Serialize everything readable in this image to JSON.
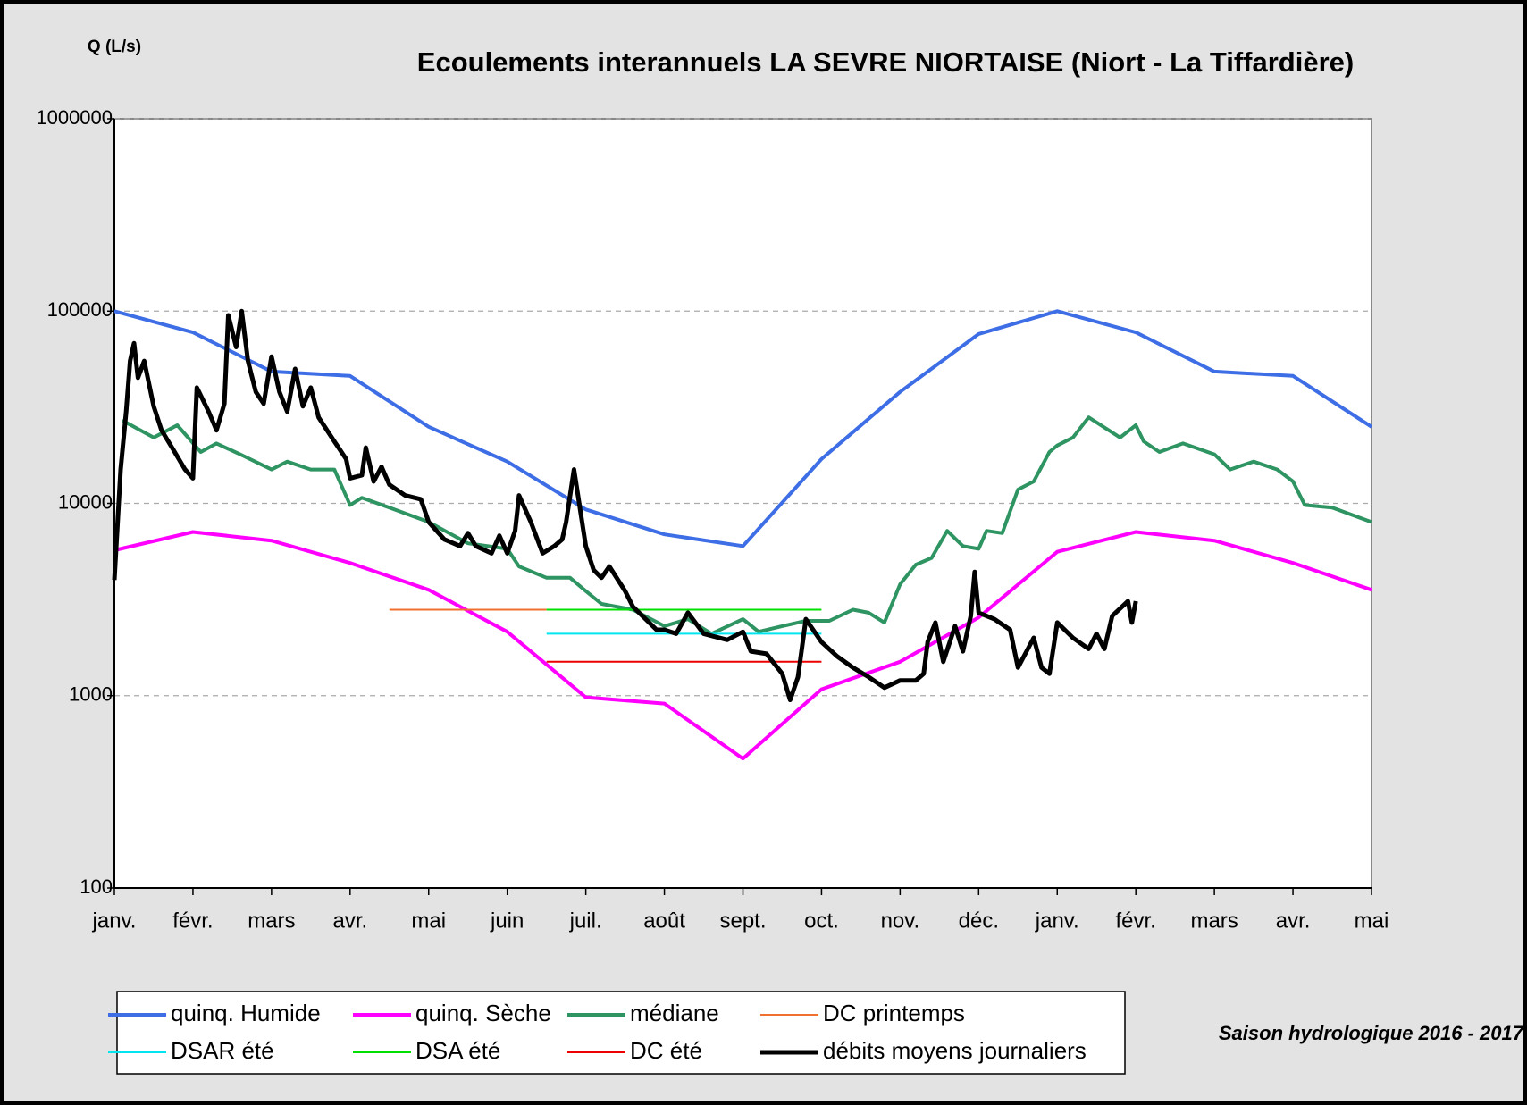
{
  "chart_data": {
    "type": "line",
    "title": "Ecoulements interannuels LA SEVRE NIORTAISE (Niort - La Tiffardière)",
    "y_label": "Q (L/s)",
    "annotation": "Saison hydrologique 2016 - 2017",
    "log_y": true,
    "grid": true,
    "xlim": [
      0,
      16
    ],
    "xticks": [
      {
        "value": 0,
        "label": "janv."
      },
      {
        "value": 1,
        "label": "févr."
      },
      {
        "value": 2,
        "label": "mars"
      },
      {
        "value": 3,
        "label": "avr."
      },
      {
        "value": 4,
        "label": "mai"
      },
      {
        "value": 5,
        "label": "juin"
      },
      {
        "value": 6,
        "label": "juil."
      },
      {
        "value": 7,
        "label": "août"
      },
      {
        "value": 8,
        "label": "sept."
      },
      {
        "value": 9,
        "label": "oct."
      },
      {
        "value": 10,
        "label": "nov."
      },
      {
        "value": 11,
        "label": "déc."
      },
      {
        "value": 12,
        "label": "janv."
      },
      {
        "value": 13,
        "label": "févr."
      },
      {
        "value": 14,
        "label": "mars"
      },
      {
        "value": 15,
        "label": "avr."
      },
      {
        "value": 16,
        "label": "mai"
      }
    ],
    "ylim": [
      100,
      1000000
    ],
    "yticks": [
      100,
      1000,
      10000,
      100000,
      1000000
    ],
    "series": [
      {
        "name": "quinq. Humide",
        "color": "#3e6ee6",
        "line_width": 4,
        "x": [
          0,
          1,
          2,
          3,
          4,
          5,
          6,
          7,
          8,
          9,
          10,
          11,
          12,
          13,
          14,
          15,
          16
        ],
        "values": [
          100000,
          77500,
          48500,
          46000,
          25000,
          16500,
          9300,
          6900,
          6000,
          17000,
          38000,
          76000,
          100000,
          77500,
          48500,
          46000,
          25000
        ]
      },
      {
        "name": "quinq. Sèche",
        "color": "#ff00ff",
        "line_width": 4,
        "x": [
          0,
          1,
          2,
          3,
          4,
          5,
          6,
          7,
          8,
          9,
          10,
          11,
          12,
          13,
          14,
          15,
          16
        ],
        "values": [
          5700,
          7100,
          6400,
          4900,
          3550,
          2150,
          980,
          910,
          470,
          1080,
          1500,
          2550,
          5600,
          7100,
          6400,
          4900,
          3550
        ]
      },
      {
        "name": "médiane",
        "color": "#2e9462",
        "line_width": 4,
        "x": [
          0.1,
          0.5,
          0.8,
          1.1,
          1.3,
          1.6,
          2.0,
          2.2,
          2.5,
          2.8,
          3.0,
          3.15,
          3.5,
          4.0,
          4.5,
          5.0,
          5.15,
          5.5,
          5.8,
          6.0,
          6.2,
          6.6,
          7.0,
          7.3,
          7.6,
          8.0,
          8.2,
          8.5,
          8.8,
          9.1,
          9.4,
          9.6,
          9.8,
          10.0,
          10.2,
          10.4,
          10.6,
          10.8,
          11.0,
          11.1,
          11.3,
          11.5,
          11.7,
          11.9,
          12.0,
          12.2,
          12.4,
          12.8,
          13.0,
          13.1,
          13.3,
          13.6,
          14.0,
          14.2,
          14.5,
          14.8,
          15.0,
          15.15,
          15.5,
          16.0
        ],
        "values": [
          27000,
          22000,
          25500,
          18500,
          20500,
          18000,
          15000,
          16500,
          15000,
          15000,
          9800,
          10700,
          9500,
          8000,
          6200,
          5800,
          4700,
          4100,
          4100,
          3500,
          3000,
          2800,
          2300,
          2500,
          2100,
          2500,
          2150,
          2300,
          2450,
          2450,
          2800,
          2700,
          2400,
          3800,
          4800,
          5200,
          7200,
          6000,
          5800,
          7200,
          7000,
          11800,
          13000,
          18500,
          20000,
          22000,
          28000,
          22000,
          25500,
          21000,
          18500,
          20500,
          18000,
          15000,
          16500,
          15000,
          13000,
          9800,
          9500,
          8000
        ]
      },
      {
        "name": "DC printemps",
        "color": "#f07030",
        "line_width": 2,
        "x": [
          3.5,
          5.5
        ],
        "values": [
          2800,
          2800
        ]
      },
      {
        "name": "DSAR été",
        "color": "#00e5ee",
        "line_width": 2,
        "x": [
          5.5,
          9.0
        ],
        "values": [
          2100,
          2100
        ]
      },
      {
        "name": "DSA été",
        "color": "#00e000",
        "line_width": 2,
        "x": [
          5.5,
          9.0
        ],
        "values": [
          2800,
          2800
        ]
      },
      {
        "name": "DC été",
        "color": "#ee0000",
        "line_width": 2,
        "x": [
          5.5,
          9.0
        ],
        "values": [
          1500,
          1500
        ]
      },
      {
        "name": "débits moyens journaliers",
        "color": "#000000",
        "line_width": 5,
        "x": [
          0.0,
          0.08,
          0.15,
          0.2,
          0.25,
          0.3,
          0.38,
          0.5,
          0.6,
          0.75,
          0.9,
          1.0,
          1.05,
          1.2,
          1.3,
          1.4,
          1.45,
          1.55,
          1.62,
          1.7,
          1.8,
          1.9,
          2.0,
          2.1,
          2.2,
          2.3,
          2.4,
          2.5,
          2.6,
          2.8,
          2.95,
          3.0,
          3.15,
          3.2,
          3.3,
          3.4,
          3.5,
          3.7,
          3.9,
          4.0,
          4.2,
          4.4,
          4.5,
          4.6,
          4.8,
          4.9,
          5.0,
          5.1,
          5.15,
          5.3,
          5.45,
          5.6,
          5.7,
          5.75,
          5.85,
          6.0,
          6.1,
          6.2,
          6.3,
          6.5,
          6.6,
          6.9,
          7.0,
          7.15,
          7.3,
          7.5,
          7.8,
          8.0,
          8.1,
          8.3,
          8.5,
          8.6,
          8.7,
          8.8,
          9.0,
          9.2,
          9.4,
          9.6,
          9.8,
          10.0,
          10.2,
          10.3,
          10.35,
          10.45,
          10.55,
          10.7,
          10.8,
          10.9,
          10.95,
          11.0,
          11.2,
          11.4,
          11.5,
          11.7,
          11.8,
          11.9,
          12.0,
          12.2,
          12.4,
          12.5,
          12.6,
          12.7,
          12.9,
          12.95,
          13.0
        ],
        "values": [
          4000,
          15000,
          30000,
          55000,
          68000,
          45000,
          55000,
          32000,
          24000,
          19000,
          15000,
          13500,
          40000,
          30000,
          24000,
          33000,
          95000,
          65000,
          100000,
          55000,
          38000,
          33000,
          58000,
          38000,
          30000,
          50000,
          32000,
          40000,
          28000,
          21000,
          17000,
          13500,
          14000,
          19500,
          13000,
          15500,
          12500,
          11000,
          10500,
          8000,
          6500,
          6000,
          7000,
          6000,
          5500,
          6800,
          5500,
          7200,
          11000,
          8000,
          5500,
          6000,
          6500,
          8000,
          15000,
          6000,
          4500,
          4100,
          4700,
          3500,
          2900,
          2200,
          2200,
          2100,
          2700,
          2100,
          1950,
          2150,
          1700,
          1650,
          1300,
          950,
          1250,
          2500,
          1900,
          1600,
          1400,
          1250,
          1100,
          1200,
          1200,
          1300,
          1900,
          2400,
          1500,
          2300,
          1700,
          2600,
          4400,
          2700,
          2500,
          2200,
          1400,
          2000,
          1400,
          1300,
          2400,
          2000,
          1750,
          2100,
          1750,
          2600,
          3100,
          2400,
          3100
        ]
      }
    ]
  }
}
